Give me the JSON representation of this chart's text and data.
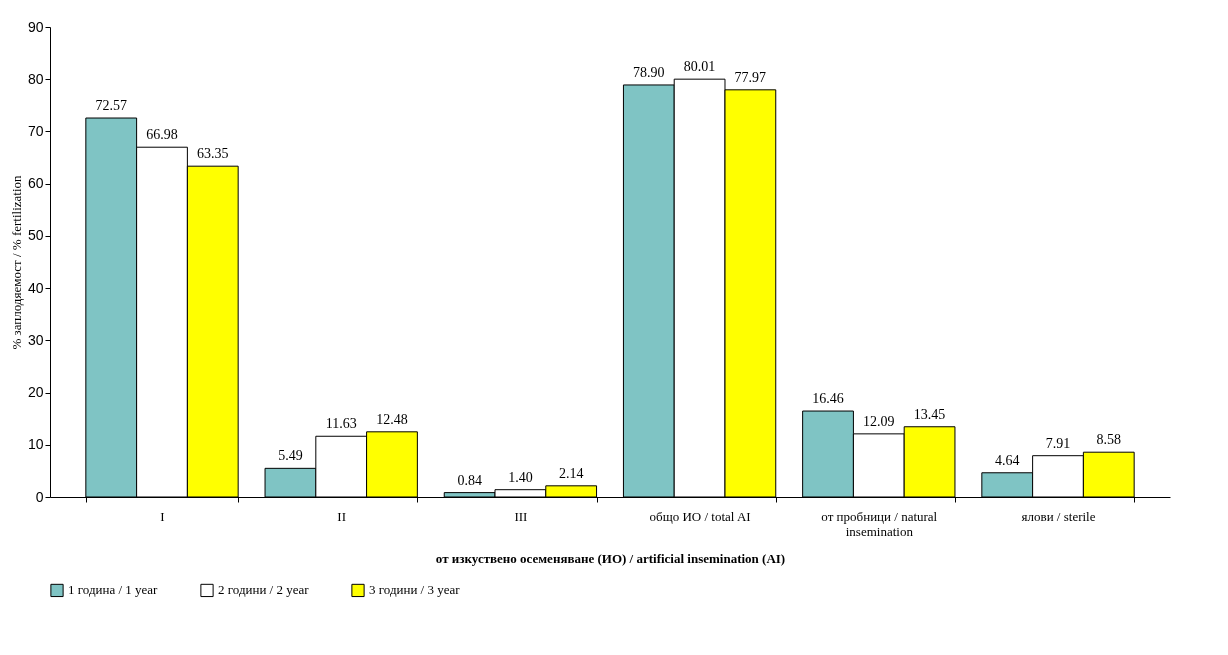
{
  "chart_data": {
    "type": "bar",
    "xlabel": "от изкуствено осеменяване (ИО) / artificial insemination (AI)",
    "ylabel": "% заплодяемост / % fertilization",
    "categories": [
      "I",
      "II",
      "III",
      "общо ИО / total AI",
      "от пробници / natural insemination",
      "ялови / sterile"
    ],
    "series": [
      {
        "name": "1 година / 1 year",
        "color": "#7fc4c4",
        "values": [
          72.57,
          5.49,
          0.84,
          78.9,
          16.46,
          4.64
        ],
        "value_labels": [
          "72.57",
          "5.49",
          "0.84",
          "78.90",
          "16.46",
          "4.64"
        ]
      },
      {
        "name": "2 години / 2 year",
        "color": "#ffffff",
        "values": [
          66.98,
          11.63,
          1.4,
          80.01,
          12.09,
          7.91
        ],
        "value_labels": [
          "66.98",
          "11.63",
          "1.40",
          "80.01",
          "12.09",
          "7.91"
        ]
      },
      {
        "name": "3 години / 3 year",
        "color": "#ffff00",
        "values": [
          63.35,
          12.48,
          2.14,
          77.97,
          13.45,
          8.58
        ],
        "value_labels": [
          "63.35",
          "12.48",
          "2.14",
          "77.97",
          "13.45",
          "8.58"
        ]
      }
    ],
    "ylim": [
      0,
      90
    ],
    "yticks": [
      0,
      10,
      20,
      30,
      40,
      50,
      60,
      70,
      80,
      90
    ],
    "legend": "bottom",
    "grid": false
  }
}
